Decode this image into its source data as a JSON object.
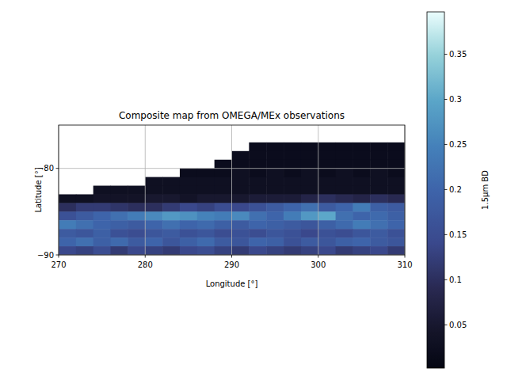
{
  "chart_data": {
    "type": "heatmap",
    "title": "Composite map from OMEGA/MEx observations",
    "x_label": "Longitude [°]",
    "y_label": "Latitude [°]",
    "xlim": [
      270,
      310
    ],
    "ylim": [
      -90,
      -75
    ],
    "xticks": [
      270,
      280,
      290,
      300,
      310
    ],
    "yticks": [
      {
        "value": -90,
        "label": "−90"
      },
      {
        "value": -80,
        "label": "−80"
      }
    ],
    "grid": true,
    "x_bins": [
      270,
      272,
      274,
      276,
      278,
      280,
      282,
      284,
      286,
      288,
      290,
      292,
      294,
      296,
      298,
      300,
      302,
      304,
      306,
      308,
      310
    ],
    "y_bins": [
      -75,
      -76,
      -77,
      -78,
      -79,
      -80,
      -81,
      -82,
      -83,
      -84,
      -85,
      -86,
      -87,
      -88,
      -89,
      -90
    ],
    "cells": [
      [
        null,
        null,
        null,
        null,
        null,
        null,
        null,
        null,
        null,
        null,
        null,
        null,
        null,
        null,
        null,
        null,
        null,
        null,
        null,
        null
      ],
      [
        null,
        null,
        null,
        null,
        null,
        null,
        null,
        null,
        null,
        null,
        null,
        null,
        null,
        null,
        null,
        null,
        null,
        null,
        null,
        null
      ],
      [
        null,
        null,
        null,
        null,
        null,
        null,
        null,
        null,
        null,
        null,
        null,
        0.02,
        0.02,
        0.02,
        0.02,
        0.02,
        0.02,
        0.02,
        0.02,
        0.02
      ],
      [
        null,
        null,
        null,
        null,
        null,
        null,
        null,
        null,
        null,
        null,
        0.02,
        0.02,
        0.02,
        0.02,
        0.02,
        0.02,
        0.02,
        0.02,
        0.02,
        0.02
      ],
      [
        null,
        null,
        null,
        null,
        null,
        null,
        null,
        null,
        null,
        0.02,
        0.02,
        0.02,
        0.02,
        0.02,
        0.02,
        0.02,
        0.02,
        0.02,
        0.02,
        0.02
      ],
      [
        null,
        null,
        null,
        null,
        null,
        null,
        null,
        0.02,
        0.02,
        0.02,
        0.03,
        0.02,
        0.03,
        0.02,
        0.03,
        0.02,
        0.03,
        0.02,
        0.03,
        0.02
      ],
      [
        null,
        null,
        null,
        null,
        null,
        0.03,
        0.03,
        0.03,
        0.03,
        0.03,
        0.03,
        0.03,
        0.03,
        0.03,
        0.03,
        0.03,
        0.03,
        0.03,
        0.03,
        0.03
      ],
      [
        null,
        null,
        0.03,
        0.03,
        0.03,
        0.03,
        0.03,
        0.03,
        0.03,
        0.03,
        0.03,
        0.03,
        0.03,
        0.03,
        0.03,
        0.03,
        0.03,
        0.03,
        0.03,
        0.03
      ],
      [
        0.03,
        0.03,
        0.04,
        0.04,
        0.04,
        0.05,
        0.05,
        0.04,
        0.05,
        0.05,
        0.05,
        0.06,
        0.06,
        0.06,
        0.08,
        0.1,
        0.09,
        0.08,
        0.1,
        0.09
      ],
      [
        0.1,
        0.12,
        0.12,
        0.11,
        0.1,
        0.1,
        0.12,
        0.14,
        0.13,
        0.15,
        0.14,
        0.16,
        0.18,
        0.2,
        0.22,
        0.18,
        0.2,
        0.24,
        0.19,
        0.18
      ],
      [
        0.16,
        0.18,
        0.2,
        0.22,
        0.24,
        0.26,
        0.28,
        0.27,
        0.25,
        0.24,
        0.26,
        0.22,
        0.2,
        0.24,
        0.28,
        0.3,
        0.22,
        0.2,
        0.21,
        0.19
      ],
      [
        0.24,
        0.22,
        0.2,
        0.19,
        0.18,
        0.2,
        0.22,
        0.2,
        0.21,
        0.19,
        0.18,
        0.2,
        0.19,
        0.18,
        0.17,
        0.19,
        0.21,
        0.24,
        0.22,
        0.2
      ],
      [
        0.18,
        0.17,
        0.19,
        0.16,
        0.15,
        0.17,
        0.18,
        0.16,
        0.17,
        0.15,
        0.16,
        0.15,
        0.17,
        0.16,
        0.14,
        0.16,
        0.15,
        0.17,
        0.18,
        0.16
      ],
      [
        0.2,
        0.22,
        0.19,
        0.21,
        0.18,
        0.2,
        0.17,
        0.19,
        0.21,
        0.18,
        0.17,
        0.2,
        0.19,
        0.16,
        0.18,
        0.17,
        0.19,
        0.2,
        0.18,
        0.17
      ],
      [
        0.14,
        0.13,
        0.15,
        0.12,
        0.14,
        0.13,
        0.12,
        0.14,
        0.15,
        0.13,
        0.12,
        0.14,
        0.13,
        0.12,
        0.13,
        0.14,
        0.12,
        0.13,
        0.14,
        0.12
      ]
    ],
    "colorbar": {
      "label": "1.5µm BD",
      "range": [
        0.002,
        0.397
      ],
      "ticks": [
        0.05,
        0.1,
        0.15,
        0.2,
        0.25,
        0.3,
        0.35
      ]
    }
  }
}
